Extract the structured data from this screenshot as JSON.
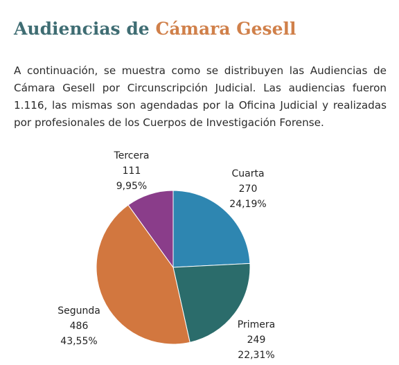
{
  "title": {
    "part1": "Audiencias de",
    "part2": "Cámara Gesell",
    "color1": "#3f6d73",
    "color2": "#d0804a"
  },
  "intro": "A continuación, se muestra como se distribuyen las Audiencias de Cámara Gesell por Circunscripción Judicial. Las audiencias fueron 1.116, las mismas son agendadas por la Oficina Judicial y realizadas por profesionales de los Cuerpos de Investigación Forense.",
  "chart_data": {
    "type": "pie",
    "title": "",
    "start_angle_deg": 0,
    "direction": "clockwise",
    "slices": [
      {
        "key": "cuarta",
        "label": "Cuarta",
        "value": 270,
        "pct": "24,19%",
        "color": "#2e86b1"
      },
      {
        "key": "primera",
        "label": "Primera",
        "value": 249,
        "pct": "22,31%",
        "color": "#2b6c6b"
      },
      {
        "key": "segunda",
        "label": "Segunda",
        "value": 486,
        "pct": "43,55%",
        "color": "#d2773f"
      },
      {
        "key": "tercera",
        "label": "Tercera",
        "value": 111,
        "pct": "9,95%",
        "color": "#8a3d8a"
      }
    ]
  }
}
